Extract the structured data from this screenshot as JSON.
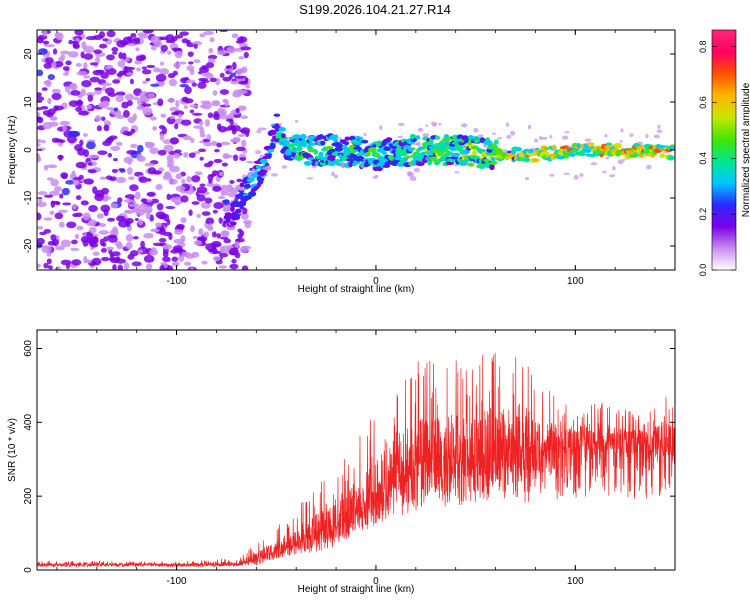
{
  "title": "S199.2026.104.21.27.R14",
  "chart_data": [
    {
      "type": "heatmap",
      "xlabel": "Height of straight line (km)",
      "ylabel": "Frequency (Hz)",
      "xlim": [
        -170,
        150
      ],
      "ylim": [
        -25,
        25
      ],
      "xticks": [
        -100,
        0,
        100
      ],
      "xtick_labels": [
        "-100",
        "0",
        "100"
      ],
      "yticks": [
        -20,
        -10,
        0,
        10,
        20
      ],
      "ytick_labels": [
        "-20",
        "-10",
        "0",
        "10",
        "20"
      ],
      "colorbar": {
        "label": "Normalized spectral amplitude",
        "range": [
          0,
          0.86
        ],
        "ticks": [
          0,
          0.2,
          0.4,
          0.6,
          0.8
        ],
        "tick_labels": [
          "0.0",
          "0.2",
          "0.4",
          "0.6",
          "0.8"
        ],
        "stops": [
          "#ffffff",
          "#c88cf0",
          "#7a00e6",
          "#2a2aff",
          "#00c8ff",
          "#00e68c",
          "#46e600",
          "#c8e600",
          "#ffb400",
          "#ff5000",
          "#ff0064",
          "#ff2878"
        ]
      },
      "trace_summary": {
        "x": [
          -170,
          -75,
          -70,
          -65,
          -55,
          -50,
          -45,
          -40,
          -20,
          0,
          20,
          40,
          60,
          80,
          100,
          120,
          150
        ],
        "frequency": [
          0,
          -15,
          -12,
          -8,
          -3,
          5,
          1,
          0,
          0,
          -1,
          0,
          0,
          -1,
          -1,
          0,
          0,
          -0.5
        ],
        "amplitude": [
          0.15,
          0.2,
          0.25,
          0.3,
          0.3,
          0.3,
          0.35,
          0.4,
          0.4,
          0.4,
          0.45,
          0.45,
          0.5,
          0.55,
          0.6,
          0.6,
          0.6
        ],
        "noise_region_x": [
          -170,
          -70
        ]
      }
    },
    {
      "type": "line",
      "xlabel": "Height of straight line (km)",
      "ylabel": "SNR (10 * v/v)",
      "xlim": [
        -170,
        150
      ],
      "ylim": [
        0,
        650
      ],
      "xticks": [
        -100,
        0,
        100
      ],
      "xtick_labels": [
        "-100",
        "0",
        "100"
      ],
      "yticks": [
        0,
        200,
        400,
        600
      ],
      "ytick_labels": [
        "0",
        "200",
        "400",
        "600"
      ],
      "color": "#ee2222",
      "series": [
        {
          "name": "SNR",
          "x": [
            -170,
            -150,
            -130,
            -110,
            -90,
            -70,
            -60,
            -50,
            -40,
            -30,
            -20,
            -10,
            0,
            10,
            20,
            30,
            40,
            50,
            60,
            70,
            80,
            90,
            100,
            110,
            120,
            130,
            140,
            150
          ],
          "values": [
            15,
            15,
            15,
            15,
            15,
            17,
            28,
            55,
            75,
            100,
            130,
            175,
            220,
            260,
            290,
            305,
            315,
            320,
            330,
            330,
            335,
            345,
            355,
            360,
            355,
            345,
            350,
            345
          ],
          "peak_envelope": [
            25,
            25,
            25,
            25,
            25,
            35,
            70,
            120,
            170,
            230,
            300,
            360,
            430,
            480,
            590,
            570,
            590,
            600,
            620,
            580,
            540,
            470,
            440,
            460,
            440,
            430,
            450,
            490
          ]
        }
      ]
    }
  ]
}
